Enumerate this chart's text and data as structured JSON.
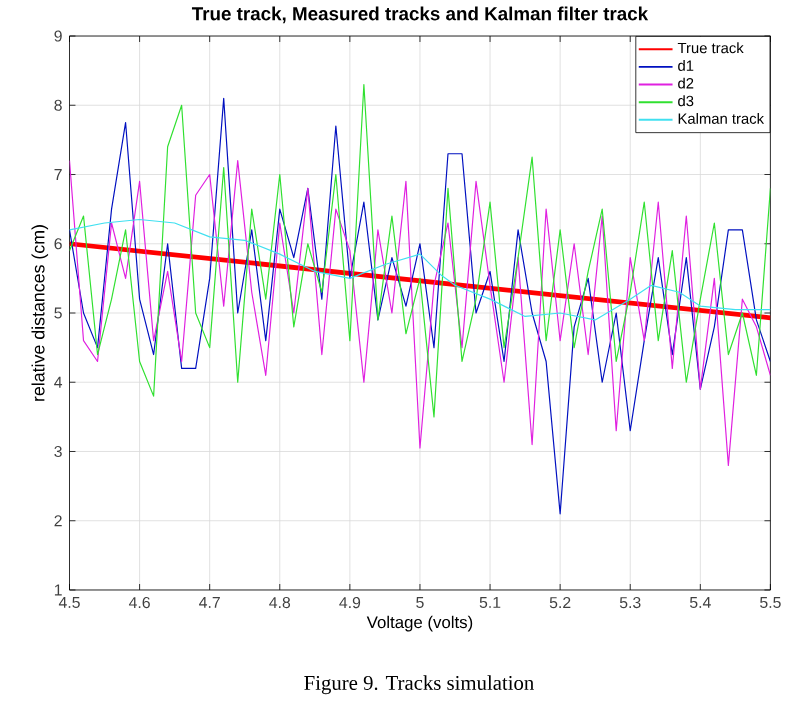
{
  "chart_data": {
    "type": "line",
    "title": "True track, Measured tracks and Kalman filter track",
    "xlabel": "Voltage (volts)",
    "ylabel": "relative distances (cm)",
    "annotations": [
      "Figure 9. Tracks simulation"
    ],
    "xlim": [
      4.5,
      5.5
    ],
    "ylim": [
      1,
      9
    ],
    "xticks": [
      4.5,
      4.6,
      4.7,
      4.8,
      4.9,
      5,
      5.1,
      5.2,
      5.3,
      5.4,
      5.5
    ],
    "yticks": [
      1,
      2,
      3,
      4,
      5,
      6,
      7,
      8,
      9
    ],
    "grid": true,
    "legend": "top right",
    "x": [
      4.5,
      4.52,
      4.54,
      4.56,
      4.58,
      4.6,
      4.62,
      4.64,
      4.66,
      4.68,
      4.7,
      4.72,
      4.74,
      4.76,
      4.78,
      4.8,
      4.82,
      4.84,
      4.86,
      4.88,
      4.9,
      4.92,
      4.94,
      4.96,
      4.98,
      5.0,
      5.02,
      5.04,
      5.06,
      5.08,
      5.1,
      5.12,
      5.14,
      5.16,
      5.18,
      5.2,
      5.22,
      5.24,
      5.26,
      5.28,
      5.3,
      5.32,
      5.34,
      5.36,
      5.38,
      5.4,
      5.42,
      5.44,
      5.46,
      5.48,
      5.5
    ],
    "series": [
      {
        "name": "True track",
        "color": "#ff0000",
        "x": [
          4.5,
          5.5
        ],
        "values": [
          6.0,
          4.93
        ]
      },
      {
        "name": "d1",
        "color": "#0010c0",
        "values": [
          6.2,
          5.0,
          4.5,
          6.5,
          7.75,
          5.2,
          4.4,
          6.0,
          4.2,
          4.2,
          5.5,
          8.1,
          5.0,
          6.2,
          4.6,
          6.5,
          5.8,
          6.8,
          5.2,
          7.7,
          5.5,
          6.6,
          4.9,
          5.8,
          5.1,
          6.0,
          4.5,
          7.3,
          7.3,
          5.0,
          5.6,
          4.3,
          6.2,
          5.0,
          4.3,
          2.1,
          4.8,
          5.5,
          4.0,
          5.0,
          3.3,
          4.6,
          5.8,
          4.4,
          5.8,
          3.9,
          4.8,
          6.2,
          6.2,
          4.9,
          4.3
        ]
      },
      {
        "name": "d2",
        "color": "#e020e0",
        "values": [
          7.2,
          4.6,
          4.3,
          6.3,
          5.5,
          6.9,
          4.6,
          5.6,
          4.3,
          6.7,
          7.0,
          5.1,
          7.2,
          5.3,
          4.1,
          6.3,
          5.0,
          6.8,
          4.4,
          6.5,
          5.9,
          4.0,
          6.2,
          5.0,
          6.9,
          3.05,
          5.4,
          6.3,
          4.5,
          6.9,
          5.4,
          4.0,
          5.8,
          3.1,
          6.5,
          4.6,
          6.0,
          4.4,
          6.4,
          3.3,
          5.8,
          4.6,
          6.6,
          4.2,
          6.4,
          3.9,
          5.5,
          2.8,
          5.2,
          4.8,
          4.1
        ]
      },
      {
        "name": "d3",
        "color": "#30e030",
        "values": [
          5.9,
          6.4,
          4.4,
          5.2,
          6.2,
          4.3,
          3.8,
          7.4,
          8.0,
          5.0,
          4.5,
          7.1,
          4.0,
          6.5,
          5.2,
          7.0,
          4.8,
          6.0,
          5.3,
          7.0,
          4.6,
          8.3,
          4.9,
          6.4,
          4.7,
          5.5,
          3.5,
          6.8,
          4.3,
          5.2,
          6.6,
          4.5,
          5.8,
          7.25,
          4.6,
          6.2,
          4.5,
          5.6,
          6.5,
          4.3,
          5.3,
          6.6,
          4.6,
          5.9,
          4.0,
          5.2,
          6.3,
          4.4,
          5.0,
          4.1,
          6.8
        ]
      },
      {
        "name": "Kalman track",
        "color": "#40e0f0",
        "x": [
          4.5,
          4.55,
          4.6,
          4.65,
          4.7,
          4.75,
          4.8,
          4.85,
          4.9,
          4.95,
          5.0,
          5.03,
          5.05,
          5.1,
          5.15,
          5.2,
          5.25,
          5.3,
          5.33,
          5.37,
          5.4,
          5.45,
          5.5
        ],
        "values": [
          6.2,
          6.3,
          6.35,
          6.3,
          6.1,
          6.05,
          5.85,
          5.6,
          5.5,
          5.7,
          5.85,
          5.55,
          5.4,
          5.2,
          4.95,
          5.0,
          4.9,
          5.2,
          5.4,
          5.3,
          5.1,
          5.05,
          5.05
        ]
      }
    ]
  }
}
